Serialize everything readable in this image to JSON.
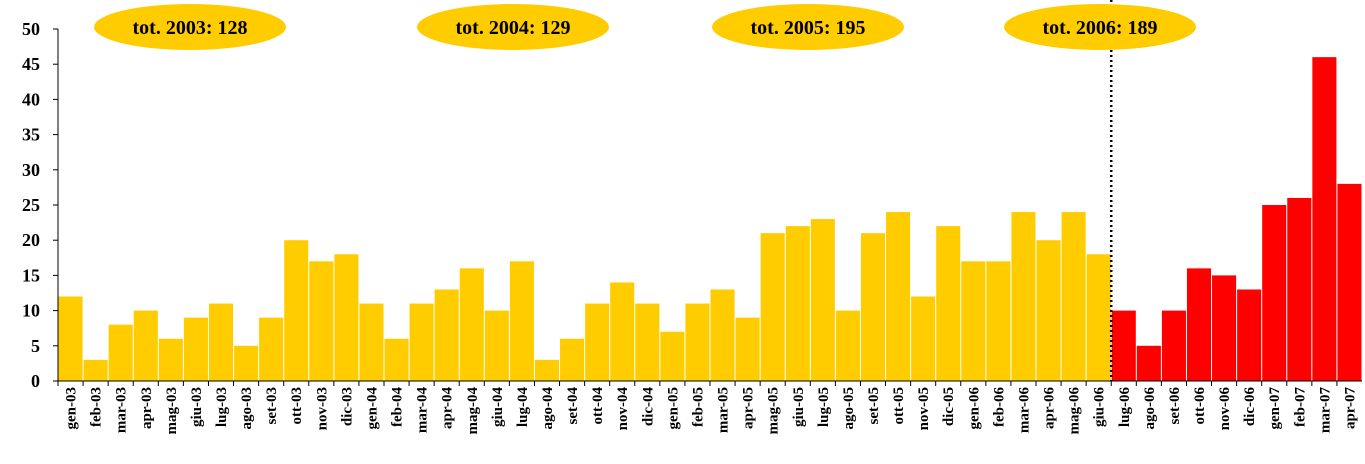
{
  "chart_data": {
    "type": "bar",
    "categories": [
      "gen-03",
      "feb-03",
      "mar-03",
      "apr-03",
      "mag-03",
      "giu-03",
      "lug-03",
      "ago-03",
      "set-03",
      "ott-03",
      "nov-03",
      "dic-03",
      "gen-04",
      "feb-04",
      "mar-04",
      "apr-04",
      "mag-04",
      "giu-04",
      "lug-04",
      "ago-04",
      "set-04",
      "ott-04",
      "nov-04",
      "dic-04",
      "gen-05",
      "feb-05",
      "mar-05",
      "apr-05",
      "mag-05",
      "giu-05",
      "lug-05",
      "ago-05",
      "set-05",
      "ott-05",
      "nov-05",
      "dic-05",
      "gen-06",
      "feb-06",
      "mar-06",
      "apr-06",
      "mag-06",
      "giu-06",
      "lug-06",
      "ago-06",
      "set-06",
      "ott-06",
      "nov-06",
      "dic-06",
      "gen-07",
      "feb-07",
      "mar-07",
      "apr-07"
    ],
    "series": [
      {
        "color": "#ffcc00",
        "values": [
          12,
          3,
          8,
          10,
          6,
          9,
          11,
          5,
          9,
          20,
          17,
          18,
          11,
          6,
          11,
          13,
          16,
          10,
          17,
          3,
          6,
          11,
          14,
          11,
          7,
          11,
          13,
          9,
          21,
          22,
          23,
          10,
          21,
          24,
          12,
          22,
          17,
          17,
          24,
          20,
          24,
          18,
          null,
          null,
          null,
          null,
          null,
          null,
          null,
          null,
          null,
          null
        ]
      },
      {
        "color": "#ff0000",
        "values": [
          null,
          null,
          null,
          null,
          null,
          null,
          null,
          null,
          null,
          null,
          null,
          null,
          null,
          null,
          null,
          null,
          null,
          null,
          null,
          null,
          null,
          null,
          null,
          null,
          null,
          null,
          null,
          null,
          null,
          null,
          null,
          null,
          null,
          null,
          null,
          null,
          null,
          null,
          null,
          null,
          null,
          null,
          10,
          5,
          10,
          16,
          15,
          13,
          25,
          26,
          46,
          28
        ]
      }
    ],
    "annotations": [
      "tot. 2003: 128",
      "tot. 2004: 129",
      "tot. 2005: 195",
      "tot. 2006: 189"
    ],
    "ylim": [
      0,
      50
    ],
    "yticks": [
      0,
      5,
      10,
      15,
      20,
      25,
      30,
      35,
      40,
      45,
      50
    ],
    "grid": false
  }
}
